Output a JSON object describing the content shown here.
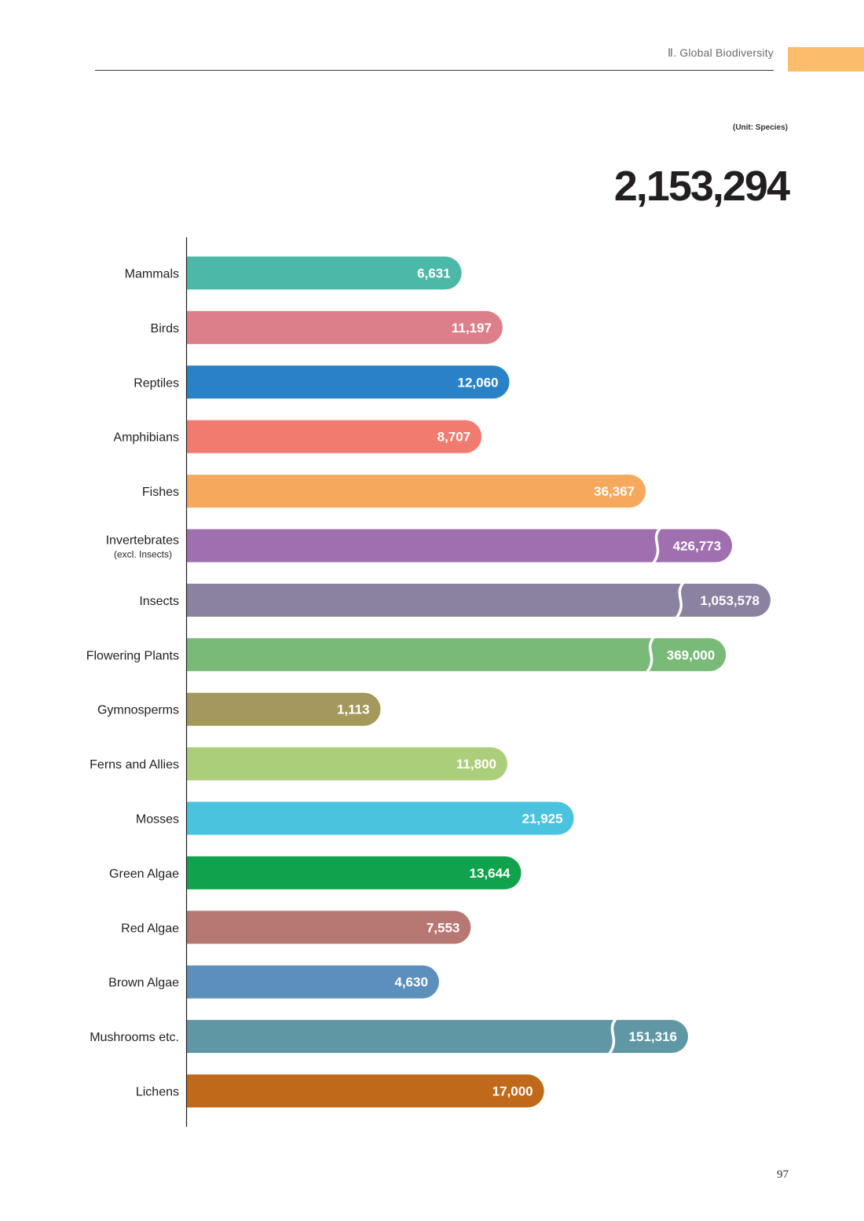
{
  "header": {
    "section_title": "Ⅱ. Global Biodiversity",
    "accent_color": "#fbbd6b"
  },
  "unit_label": "(Unit: Species)",
  "total": "2,153,294",
  "page_number": "97",
  "chart_data": {
    "type": "bar",
    "orientation": "horizontal",
    "categories": [
      {
        "label": "Mammals",
        "sublabel": "",
        "value": 6631,
        "value_label": "6,631",
        "color": "#4cb8a8",
        "axis_break": false
      },
      {
        "label": "Birds",
        "sublabel": "",
        "value": 11197,
        "value_label": "11,197",
        "color": "#dd7f8a",
        "axis_break": false
      },
      {
        "label": "Reptiles",
        "sublabel": "",
        "value": 12060,
        "value_label": "12,060",
        "color": "#2a82c6",
        "axis_break": false
      },
      {
        "label": "Amphibians",
        "sublabel": "",
        "value": 8707,
        "value_label": "8,707",
        "color": "#f17b6e",
        "axis_break": false
      },
      {
        "label": "Fishes",
        "sublabel": "",
        "value": 36367,
        "value_label": "36,367",
        "color": "#f6a85c",
        "axis_break": false
      },
      {
        "label": "Invertebrates",
        "sublabel": "(excl. Insects)",
        "value": 426773,
        "value_label": "426,773",
        "color": "#9f6faf",
        "axis_break": true
      },
      {
        "label": "Insects",
        "sublabel": "",
        "value": 1053578,
        "value_label": "1,053,578",
        "color": "#8b81a1",
        "axis_break": true
      },
      {
        "label": "Flowering Plants",
        "sublabel": "",
        "value": 369000,
        "value_label": "369,000",
        "color": "#7aba78",
        "axis_break": true
      },
      {
        "label": "Gymnosperms",
        "sublabel": "",
        "value": 1113,
        "value_label": "1,113",
        "color": "#a5985d",
        "axis_break": false
      },
      {
        "label": "Ferns and Allies",
        "sublabel": "",
        "value": 11800,
        "value_label": "11,800",
        "color": "#abce7a",
        "axis_break": false
      },
      {
        "label": "Mosses",
        "sublabel": "",
        "value": 21925,
        "value_label": "21,925",
        "color": "#4ac3de",
        "axis_break": false
      },
      {
        "label": "Green Algae",
        "sublabel": "",
        "value": 13644,
        "value_label": "13,644",
        "color": "#10a24c",
        "axis_break": false
      },
      {
        "label": "Red Algae",
        "sublabel": "",
        "value": 7553,
        "value_label": "7,553",
        "color": "#b77873",
        "axis_break": false
      },
      {
        "label": "Brown Algae",
        "sublabel": "",
        "value": 4630,
        "value_label": "4,630",
        "color": "#5c8fbc",
        "axis_break": false
      },
      {
        "label": "Mushrooms etc.",
        "sublabel": "",
        "value": 151316,
        "value_label": "151,316",
        "color": "#5f97a5",
        "axis_break": true
      },
      {
        "label": "Lichens",
        "sublabel": "",
        "value": 17000,
        "value_label": "17,000",
        "color": "#c1691b",
        "axis_break": false
      }
    ]
  }
}
